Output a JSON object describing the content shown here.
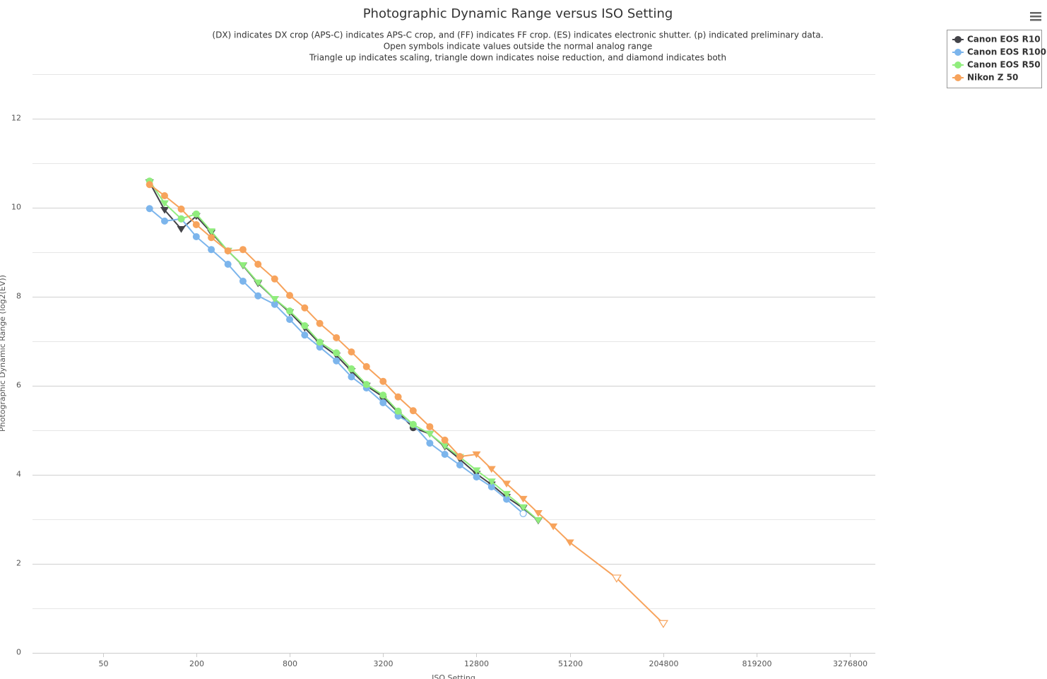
{
  "chart_data": {
    "type": "line",
    "title": "Photographic Dynamic Range versus ISO Setting",
    "subtitle": [
      "(DX) indicates DX crop (APS-C) indicates APS-C crop, and (FF) indicates FF crop. (ES) indicates electronic shutter. (p) indicated preliminary data.",
      "Open symbols indicate values outside the normal analog range",
      "Triangle up indicates scaling, triangle down indicates noise reduction, and diamond indicates both"
    ],
    "x_label": "ISO Setting",
    "y_label": "Photographic Dynamic Range (log2(EV))",
    "x_log_base": 2,
    "xlim": [
      17.6,
      4760000
    ],
    "xticks": [
      50,
      200,
      800,
      3200,
      12800,
      51200,
      204800,
      819200,
      3276800
    ],
    "ylim": [
      0,
      13
    ],
    "yticks": [
      0,
      2,
      4,
      6,
      8,
      10,
      12
    ],
    "y_minor_grid": [
      1,
      3,
      5,
      7,
      9,
      11,
      13
    ],
    "grid": true,
    "legend": "top-right",
    "series": [
      {
        "name": "Canon EOS R10",
        "color": "#434348",
        "x": [
          100,
          125,
          160,
          200,
          250,
          320,
          400,
          500,
          640,
          800,
          1000,
          1250,
          1600,
          2000,
          2500,
          3200,
          4000,
          5000,
          6400,
          8000,
          10000,
          12800,
          16000,
          20000,
          25600,
          32000
        ],
        "values": [
          10.57,
          9.95,
          9.52,
          9.81,
          9.44,
          9.03,
          8.7,
          8.3,
          7.95,
          7.65,
          7.3,
          6.95,
          6.68,
          6.33,
          6.0,
          5.75,
          5.4,
          5.06,
          4.92,
          4.63,
          4.35,
          4.02,
          3.78,
          3.5,
          3.25,
          2.97
        ],
        "markers": [
          "triangle-down",
          "triangle-down",
          "triangle-down",
          "triangle-down",
          "triangle-down",
          "triangle-down",
          "triangle-down",
          "triangle-down",
          "triangle-down",
          "triangle-down",
          "triangle-down",
          "triangle-down",
          "triangle-down",
          "triangle-down",
          "triangle-down",
          "circle",
          "circle",
          "circle",
          "triangle-down",
          "triangle-down",
          "triangle-down",
          "triangle-down",
          "triangle-down",
          "triangle-down",
          "triangle-down",
          "triangle-down"
        ]
      },
      {
        "name": "Canon EOS R100",
        "color": "#7cb5ec",
        "x": [
          100,
          125,
          160,
          200,
          250,
          320,
          400,
          500,
          640,
          800,
          1000,
          1250,
          1600,
          2000,
          2500,
          3200,
          4000,
          5000,
          6400,
          8000,
          10000,
          12800,
          16000,
          20000,
          25600
        ],
        "values": [
          9.98,
          9.7,
          9.75,
          9.35,
          9.06,
          8.73,
          8.35,
          8.02,
          7.83,
          7.49,
          7.14,
          6.87,
          6.56,
          6.2,
          5.95,
          5.62,
          5.32,
          5.13,
          4.71,
          4.46,
          4.22,
          3.95,
          3.73,
          3.45,
          3.13
        ],
        "markers": [
          "circle",
          "circle",
          "circle",
          "circle",
          "circle",
          "circle",
          "circle",
          "circle",
          "circle",
          "circle",
          "circle",
          "circle",
          "circle",
          "circle",
          "circle",
          "circle",
          "circle",
          "circle",
          "circle",
          "circle",
          "circle",
          "circle",
          "circle",
          "circle",
          "circle-open"
        ]
      },
      {
        "name": "Canon EOS R50",
        "color": "#90ed7d",
        "x": [
          100,
          125,
          160,
          200,
          250,
          320,
          400,
          500,
          640,
          800,
          1000,
          1250,
          1600,
          2000,
          2500,
          3200,
          4000,
          5000,
          6400,
          8000,
          10000,
          12800,
          16000,
          20000,
          25600,
          32000
        ],
        "values": [
          10.6,
          10.1,
          9.75,
          9.86,
          9.47,
          9.03,
          8.71,
          8.32,
          7.95,
          7.68,
          7.35,
          6.98,
          6.74,
          6.38,
          6.03,
          5.79,
          5.43,
          5.13,
          4.92,
          4.65,
          4.4,
          4.1,
          3.85,
          3.57,
          3.27,
          2.98
        ],
        "markers": [
          "circle",
          "triangle-down",
          "circle",
          "circle",
          "triangle-down",
          "triangle-down",
          "triangle-down",
          "triangle-down",
          "triangle-down",
          "circle",
          "circle",
          "circle",
          "circle",
          "circle",
          "circle",
          "circle",
          "circle",
          "circle",
          "triangle-down",
          "triangle-down",
          "triangle-down",
          "triangle-down",
          "triangle-down",
          "triangle-down",
          "triangle-down",
          "triangle-down"
        ]
      },
      {
        "name": "Nikon Z 50",
        "color": "#f7a35c",
        "x": [
          100,
          125,
          160,
          200,
          250,
          320,
          400,
          500,
          640,
          800,
          1000,
          1250,
          1600,
          2000,
          2500,
          3200,
          4000,
          5000,
          6400,
          8000,
          10000,
          12800,
          16000,
          20000,
          25600,
          32000,
          40000,
          51200,
          102400,
          204800
        ],
        "values": [
          10.52,
          10.27,
          9.97,
          9.62,
          9.33,
          9.03,
          9.06,
          8.73,
          8.4,
          8.03,
          7.75,
          7.4,
          7.08,
          6.76,
          6.43,
          6.1,
          5.75,
          5.44,
          5.08,
          4.78,
          4.41,
          4.46,
          4.13,
          3.8,
          3.46,
          3.14,
          2.84,
          2.48,
          1.68,
          0.66
        ],
        "markers": [
          "circle",
          "circle",
          "circle",
          "circle",
          "circle",
          "circle",
          "circle",
          "circle",
          "circle",
          "circle",
          "circle",
          "circle",
          "circle",
          "circle",
          "circle",
          "circle",
          "circle",
          "circle",
          "circle",
          "circle",
          "circle",
          "triangle-down",
          "triangle-down",
          "triangle-down",
          "triangle-down",
          "triangle-down",
          "triangle-down",
          "triangle-down",
          "triangle-down-open",
          "triangle-down-open"
        ]
      }
    ]
  }
}
